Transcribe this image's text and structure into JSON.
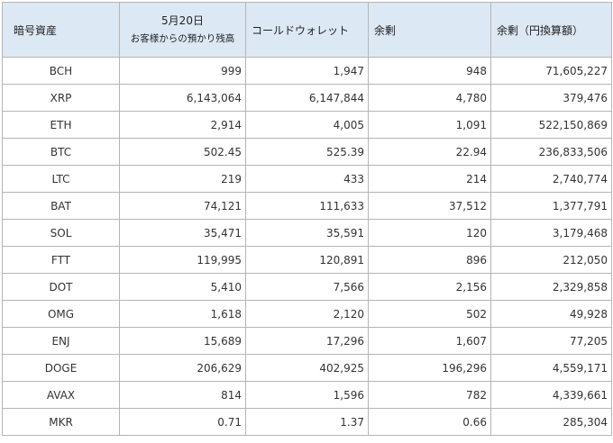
{
  "headers": {
    "asset": "暗号資産",
    "date": "5月20日",
    "date_sub": "お客様からの預かり残高",
    "cold_wallet": "コールドウォレット",
    "surplus": "余剰",
    "surplus_jpy": "余剰（円換算額）"
  },
  "rows": [
    {
      "asset": "BCH",
      "deposit": "999",
      "cold": "1,947",
      "surplus": "948",
      "jpy": "71,605,227"
    },
    {
      "asset": "XRP",
      "deposit": "6,143,064",
      "cold": "6,147,844",
      "surplus": "4,780",
      "jpy": "379,476"
    },
    {
      "asset": "ETH",
      "deposit": "2,914",
      "cold": "4,005",
      "surplus": "1,091",
      "jpy": "522,150,869"
    },
    {
      "asset": "BTC",
      "deposit": "502.45",
      "cold": "525.39",
      "surplus": "22.94",
      "jpy": "236,833,506"
    },
    {
      "asset": "LTC",
      "deposit": "219",
      "cold": "433",
      "surplus": "214",
      "jpy": "2,740,774"
    },
    {
      "asset": "BAT",
      "deposit": "74,121",
      "cold": "111,633",
      "surplus": "37,512",
      "jpy": "1,377,791"
    },
    {
      "asset": "SOL",
      "deposit": "35,471",
      "cold": "35,591",
      "surplus": "120",
      "jpy": "3,179,468"
    },
    {
      "asset": "FTT",
      "deposit": "119,995",
      "cold": "120,891",
      "surplus": "896",
      "jpy": "212,050"
    },
    {
      "asset": "DOT",
      "deposit": "5,410",
      "cold": "7,566",
      "surplus": "2,156",
      "jpy": "2,329,858"
    },
    {
      "asset": "OMG",
      "deposit": "1,618",
      "cold": "2,120",
      "surplus": "502",
      "jpy": "49,928"
    },
    {
      "asset": "ENJ",
      "deposit": "15,689",
      "cold": "17,296",
      "surplus": "1,607",
      "jpy": "77,205"
    },
    {
      "asset": "DOGE",
      "deposit": "206,629",
      "cold": "402,925",
      "surplus": "196,296",
      "jpy": "4,559,171"
    },
    {
      "asset": "AVAX",
      "deposit": "814",
      "cold": "1,596",
      "surplus": "782",
      "jpy": "4,339,661"
    },
    {
      "asset": "MKR",
      "deposit": "0.71",
      "cold": "1.37",
      "surplus": "0.66",
      "jpy": "285,304"
    }
  ]
}
